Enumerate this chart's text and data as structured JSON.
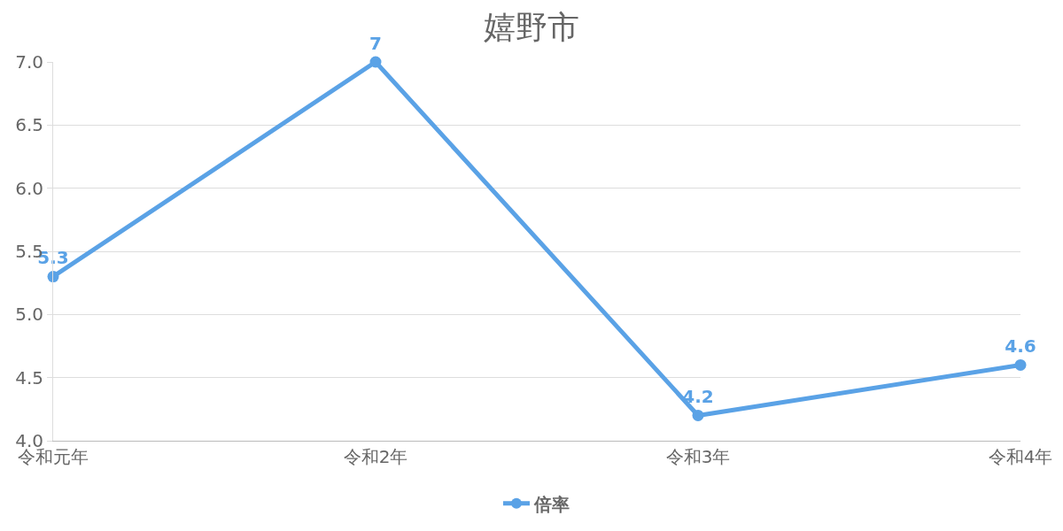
{
  "chart_data": {
    "type": "line",
    "title": "嬉野市",
    "categories": [
      "令和元年",
      "令和2年",
      "令和3年",
      "令和4年"
    ],
    "series": [
      {
        "name": "倍率",
        "color": "#5aa2e6",
        "values": [
          5.3,
          7,
          4.2,
          4.6
        ]
      }
    ],
    "ylim": [
      4.0,
      7.0
    ],
    "yticks": [
      {
        "value": 4.0,
        "label": "4.0"
      },
      {
        "value": 4.5,
        "label": "4.5"
      },
      {
        "value": 5.0,
        "label": "5.0"
      },
      {
        "value": 5.5,
        "label": "5.5"
      },
      {
        "value": 6.0,
        "label": "6.0"
      },
      {
        "value": 6.5,
        "label": "6.5"
      },
      {
        "value": 7.0,
        "label": "7.0"
      }
    ],
    "grid": "y",
    "legend": "bottom",
    "marker": "circle",
    "line_style": "solid",
    "data_labels": true
  }
}
